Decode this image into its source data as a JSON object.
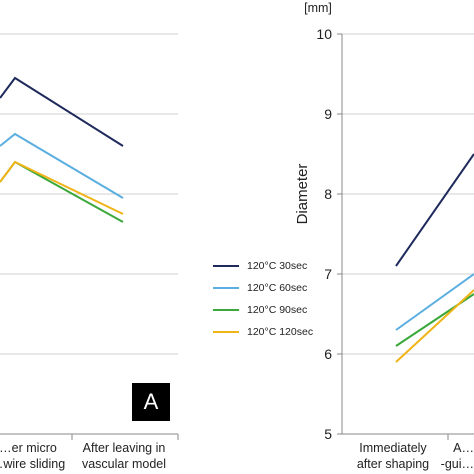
{
  "chart_data": [
    {
      "type": "line",
      "title": "",
      "xlabel": "",
      "ylabel": "",
      "categories": [
        "…er micro\n…wire sliding",
        "After leaving in\nvascular model"
      ],
      "series": [
        {
          "name": "120°C 30sec",
          "color": "#1f2a5c",
          "values": [
            9.45,
            8.6
          ]
        },
        {
          "name": "120°C 60sec",
          "color": "#5aaee0",
          "values": [
            8.75,
            7.95
          ]
        },
        {
          "name": "120°C 90sec",
          "color": "#3aa83a",
          "values": [
            8.4,
            7.65
          ]
        },
        {
          "name": "120°C 120sec",
          "color": "#f0b418",
          "values": [
            8.4,
            7.75
          ]
        }
      ],
      "extra_left": [
        9.2,
        8.6,
        8.15,
        8.15
      ],
      "grid": true,
      "panel_label": "A"
    },
    {
      "type": "line",
      "title": "",
      "xlabel": "",
      "ylabel": "Diameter",
      "unit": "[mm]",
      "ylim": [
        5,
        10
      ],
      "yticks": [
        "5",
        "6",
        "7",
        "8",
        "9",
        "10"
      ],
      "categories": [
        "Immediately\nafter shaping",
        "A…\n-gui…"
      ],
      "series": [
        {
          "name": "120°C 30sec",
          "color": "#1f2a5c",
          "values": [
            7.1,
            8.5
          ]
        },
        {
          "name": "120°C 60sec",
          "color": "#5aaee0",
          "values": [
            6.3,
            7.0
          ]
        },
        {
          "name": "120°C 90sec",
          "color": "#3aa83a",
          "values": [
            6.1,
            6.75
          ]
        },
        {
          "name": "120°C 120sec",
          "color": "#f0b418",
          "values": [
            5.9,
            6.8
          ]
        }
      ],
      "grid": true
    }
  ],
  "legend": {
    "placement": "center",
    "items": [
      {
        "label": "120°C 30sec",
        "color": "#1f2a5c"
      },
      {
        "label": "120°C 60sec",
        "color": "#5aaee0"
      },
      {
        "label": "120°C 90sec",
        "color": "#3aa83a"
      },
      {
        "label": "120°C 120sec",
        "color": "#f0b418"
      }
    ]
  }
}
